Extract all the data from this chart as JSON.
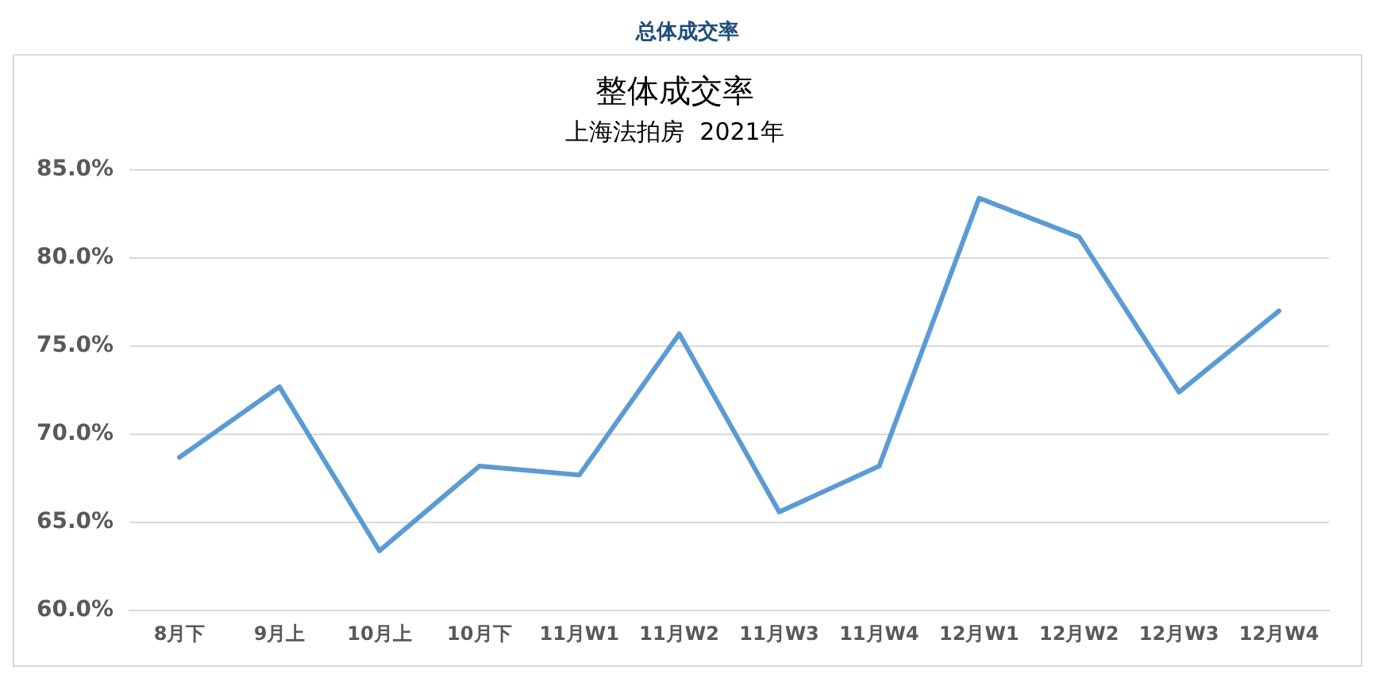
{
  "chart_data": {
    "type": "line",
    "title": "整体成交率",
    "subtitle": "上海法拍房  2021年",
    "annotations": [
      "总体成交率"
    ],
    "categories": [
      "8月下",
      "9月上",
      "10月上",
      "10月下",
      "11月W1",
      "11月W2",
      "11月W3",
      "11月W4",
      "12月W1",
      "12月W2",
      "12月W3",
      "12月W4"
    ],
    "series": [
      {
        "color": "#5b9bd5",
        "values": [
          68.7,
          72.7,
          63.4,
          68.2,
          67.7,
          75.7,
          65.6,
          68.2,
          83.4,
          81.2,
          72.4,
          77.0
        ]
      }
    ],
    "ylim": [
      60,
      85
    ],
    "yticks": [
      {
        "value": 60,
        "label": "60.0%"
      },
      {
        "value": 65,
        "label": "65.0%"
      },
      {
        "value": 70,
        "label": "70.0%"
      },
      {
        "value": 75,
        "label": "75.0%"
      },
      {
        "value": 80,
        "label": "80.0%"
      },
      {
        "value": 85,
        "label": "85.0%"
      }
    ],
    "grid": "y",
    "legend": false,
    "marker": "none",
    "line_style": "solid"
  }
}
